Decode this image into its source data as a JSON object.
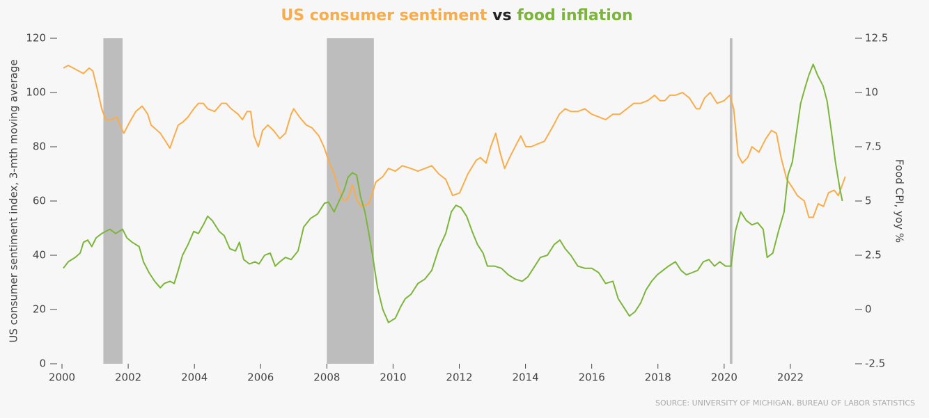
{
  "chart_data": {
    "type": "line",
    "title_parts": [
      "US consumer sentiment",
      "vs",
      "food inflation"
    ],
    "y_label": "US consumer sentiment index, 3-mth moving average",
    "y2_label": "Food CPI, yoy %",
    "source": "SOURCE: UNIVERSITY OF MICHIGAN, BUREAU OF LABOR STATISTICS",
    "xlim": [
      2000,
      2024
    ],
    "xticks": [
      2000,
      2002,
      2004,
      2006,
      2008,
      2010,
      2012,
      2014,
      2016,
      2018,
      2020,
      2022
    ],
    "ylim": [
      0,
      120
    ],
    "yticks": [
      0,
      20,
      40,
      60,
      80,
      100,
      120
    ],
    "y2lim": [
      -2.5,
      12.5
    ],
    "y2ticks": [
      -2.5,
      0,
      2.5,
      5,
      7.5,
      10,
      12.5
    ],
    "grid": false,
    "recessions": [
      [
        2001.25,
        2001.83
      ],
      [
        2008.0,
        2009.42
      ],
      [
        2020.17,
        2020.25
      ]
    ],
    "recession_color": "#bdbdbd",
    "series": [
      {
        "name": "US consumer sentiment",
        "color": "#f9ad4a",
        "x": [
          2000.04,
          2000.19,
          2000.65,
          2000.82,
          2000.93,
          2001.07,
          2001.2,
          2001.32,
          2001.49,
          2001.66,
          2001.75,
          2001.87,
          2002.04,
          2002.23,
          2002.42,
          2002.59,
          2002.69,
          2002.97,
          2003.13,
          2003.26,
          2003.39,
          2003.51,
          2003.64,
          2003.81,
          2003.98,
          2004.12,
          2004.27,
          2004.4,
          2004.61,
          2004.82,
          2004.96,
          2005.11,
          2005.32,
          2005.45,
          2005.59,
          2005.7,
          2005.8,
          2005.93,
          2006.06,
          2006.22,
          2006.39,
          2006.58,
          2006.75,
          2006.92,
          2007.0,
          2007.17,
          2007.38,
          2007.55,
          2007.76,
          2007.91,
          2008.08,
          2008.22,
          2008.37,
          2008.52,
          2008.64,
          2008.77,
          2008.92,
          2009.06,
          2009.27,
          2009.48,
          2009.69,
          2009.86,
          2010.07,
          2010.28,
          2010.54,
          2010.75,
          2010.96,
          2011.17,
          2011.38,
          2011.59,
          2011.8,
          2012.01,
          2012.26,
          2012.51,
          2012.64,
          2012.81,
          2012.95,
          2013.1,
          2013.23,
          2013.37,
          2013.52,
          2013.73,
          2013.86,
          2014.01,
          2014.17,
          2014.36,
          2014.57,
          2014.85,
          2015.02,
          2015.2,
          2015.37,
          2015.58,
          2015.79,
          2016.0,
          2016.21,
          2016.42,
          2016.64,
          2016.85,
          2017.06,
          2017.27,
          2017.48,
          2017.69,
          2017.9,
          2018.06,
          2018.21,
          2018.36,
          2018.53,
          2018.74,
          2018.95,
          2019.16,
          2019.26,
          2019.41,
          2019.58,
          2019.79,
          2020.0,
          2020.17,
          2020.29,
          2020.42,
          2020.55,
          2020.71,
          2020.84,
          2021.05,
          2021.26,
          2021.43,
          2021.58,
          2021.72,
          2021.89,
          2022.06,
          2022.21,
          2022.42,
          2022.56,
          2022.69,
          2022.84,
          2023.0,
          2023.15,
          2023.32,
          2023.45,
          2023.66
        ],
        "values": [
          109,
          110,
          107,
          109,
          108,
          101,
          94,
          90,
          90,
          91,
          88,
          85,
          89,
          93,
          95,
          92,
          88,
          85,
          82,
          79.5,
          84,
          88,
          89,
          91,
          94,
          96,
          96,
          94,
          93,
          96,
          96,
          94,
          92,
          90,
          93,
          93,
          84,
          80,
          86,
          88,
          86,
          83,
          85,
          92,
          94,
          91,
          88,
          87,
          84,
          80,
          74,
          70,
          64,
          60,
          61,
          66,
          60,
          58,
          59,
          67,
          69,
          72,
          71,
          73,
          72,
          71,
          72,
          73,
          70,
          68,
          62,
          63,
          70,
          75,
          76,
          74,
          80,
          85,
          78,
          72,
          76,
          81,
          84,
          80,
          80,
          81,
          82,
          88,
          92,
          94,
          93,
          93,
          94,
          92,
          91,
          90,
          92,
          92,
          94,
          96,
          96,
          97,
          99,
          97,
          97,
          99,
          99,
          100,
          98,
          94,
          94,
          98,
          100,
          96,
          97,
          99,
          94,
          77,
          74,
          76,
          80,
          78,
          83,
          86,
          85,
          76,
          68,
          65,
          62,
          60,
          54,
          54,
          59,
          58,
          63,
          64,
          62,
          69
        ]
      },
      {
        "name": "food inflation",
        "color": "#7cb53a",
        "axis": "y2",
        "x": [
          2000.04,
          2000.19,
          2000.4,
          2000.55,
          2000.65,
          2000.78,
          2000.9,
          2001.03,
          2001.2,
          2001.32,
          2001.45,
          2001.62,
          2001.83,
          2001.96,
          2002.12,
          2002.33,
          2002.46,
          2002.63,
          2002.8,
          2002.97,
          2003.09,
          2003.26,
          2003.39,
          2003.51,
          2003.64,
          2003.81,
          2003.98,
          2004.12,
          2004.27,
          2004.4,
          2004.54,
          2004.75,
          2004.9,
          2005.07,
          2005.24,
          2005.36,
          2005.49,
          2005.66,
          2005.83,
          2005.95,
          2006.12,
          2006.29,
          2006.44,
          2006.58,
          2006.75,
          2006.92,
          2007.13,
          2007.3,
          2007.51,
          2007.72,
          2007.93,
          2008.05,
          2008.22,
          2008.37,
          2008.52,
          2008.64,
          2008.77,
          2008.9,
          2009.02,
          2009.15,
          2009.27,
          2009.4,
          2009.53,
          2009.69,
          2009.86,
          2010.07,
          2010.22,
          2010.37,
          2010.54,
          2010.75,
          2010.96,
          2011.17,
          2011.38,
          2011.59,
          2011.76,
          2011.9,
          2012.05,
          2012.22,
          2012.39,
          2012.55,
          2012.72,
          2012.85,
          2013.06,
          2013.27,
          2013.48,
          2013.69,
          2013.9,
          2014.07,
          2014.24,
          2014.45,
          2014.66,
          2014.87,
          2015.04,
          2015.2,
          2015.37,
          2015.58,
          2015.79,
          2016.0,
          2016.21,
          2016.42,
          2016.64,
          2016.8,
          2016.97,
          2017.14,
          2017.31,
          2017.48,
          2017.64,
          2017.81,
          2017.98,
          2018.15,
          2018.32,
          2018.53,
          2018.7,
          2018.86,
          2019.03,
          2019.2,
          2019.37,
          2019.54,
          2019.71,
          2019.87,
          2020.04,
          2020.21,
          2020.34,
          2020.5,
          2020.67,
          2020.84,
          2021.01,
          2021.18,
          2021.3,
          2021.47,
          2021.64,
          2021.81,
          2021.93,
          2022.06,
          2022.19,
          2022.31,
          2022.44,
          2022.56,
          2022.69,
          2022.82,
          2022.99,
          2023.11,
          2023.24,
          2023.36,
          2023.49,
          2023.57
        ],
        "values": [
          1.9,
          2.2,
          2.4,
          2.6,
          3.1,
          3.2,
          2.9,
          3.3,
          3.5,
          3.6,
          3.7,
          3.5,
          3.7,
          3.3,
          3.1,
          2.9,
          2.2,
          1.7,
          1.3,
          1.0,
          1.2,
          1.3,
          1.2,
          1.8,
          2.5,
          3.0,
          3.6,
          3.5,
          3.9,
          4.3,
          4.1,
          3.6,
          3.4,
          2.8,
          2.7,
          3.1,
          2.3,
          2.1,
          2.2,
          2.1,
          2.5,
          2.6,
          2.0,
          2.2,
          2.4,
          2.3,
          2.7,
          3.8,
          4.2,
          4.4,
          4.9,
          4.95,
          4.5,
          5.0,
          5.5,
          6.1,
          6.3,
          6.2,
          5.2,
          4.5,
          3.5,
          2.3,
          1.0,
          0.0,
          -0.6,
          -0.4,
          0.1,
          0.5,
          0.7,
          1.2,
          1.4,
          1.8,
          2.8,
          3.5,
          4.5,
          4.8,
          4.7,
          4.3,
          3.6,
          3.0,
          2.6,
          2.0,
          2.0,
          1.9,
          1.6,
          1.4,
          1.3,
          1.5,
          1.9,
          2.4,
          2.5,
          3.0,
          3.2,
          2.8,
          2.5,
          2.0,
          1.9,
          1.9,
          1.7,
          1.2,
          1.3,
          0.5,
          0.1,
          -0.3,
          -0.1,
          0.3,
          0.9,
          1.3,
          1.6,
          1.8,
          2.0,
          2.2,
          1.8,
          1.6,
          1.7,
          1.8,
          2.2,
          2.3,
          2.0,
          2.2,
          2.0,
          2.0,
          3.6,
          4.5,
          4.1,
          3.9,
          4.0,
          3.7,
          2.4,
          2.6,
          3.6,
          4.5,
          6.2,
          6.8,
          8.2,
          9.5,
          10.2,
          10.8,
          11.3,
          10.8,
          10.3,
          9.6,
          8.2,
          6.8,
          5.6,
          5.0
        ]
      }
    ]
  }
}
